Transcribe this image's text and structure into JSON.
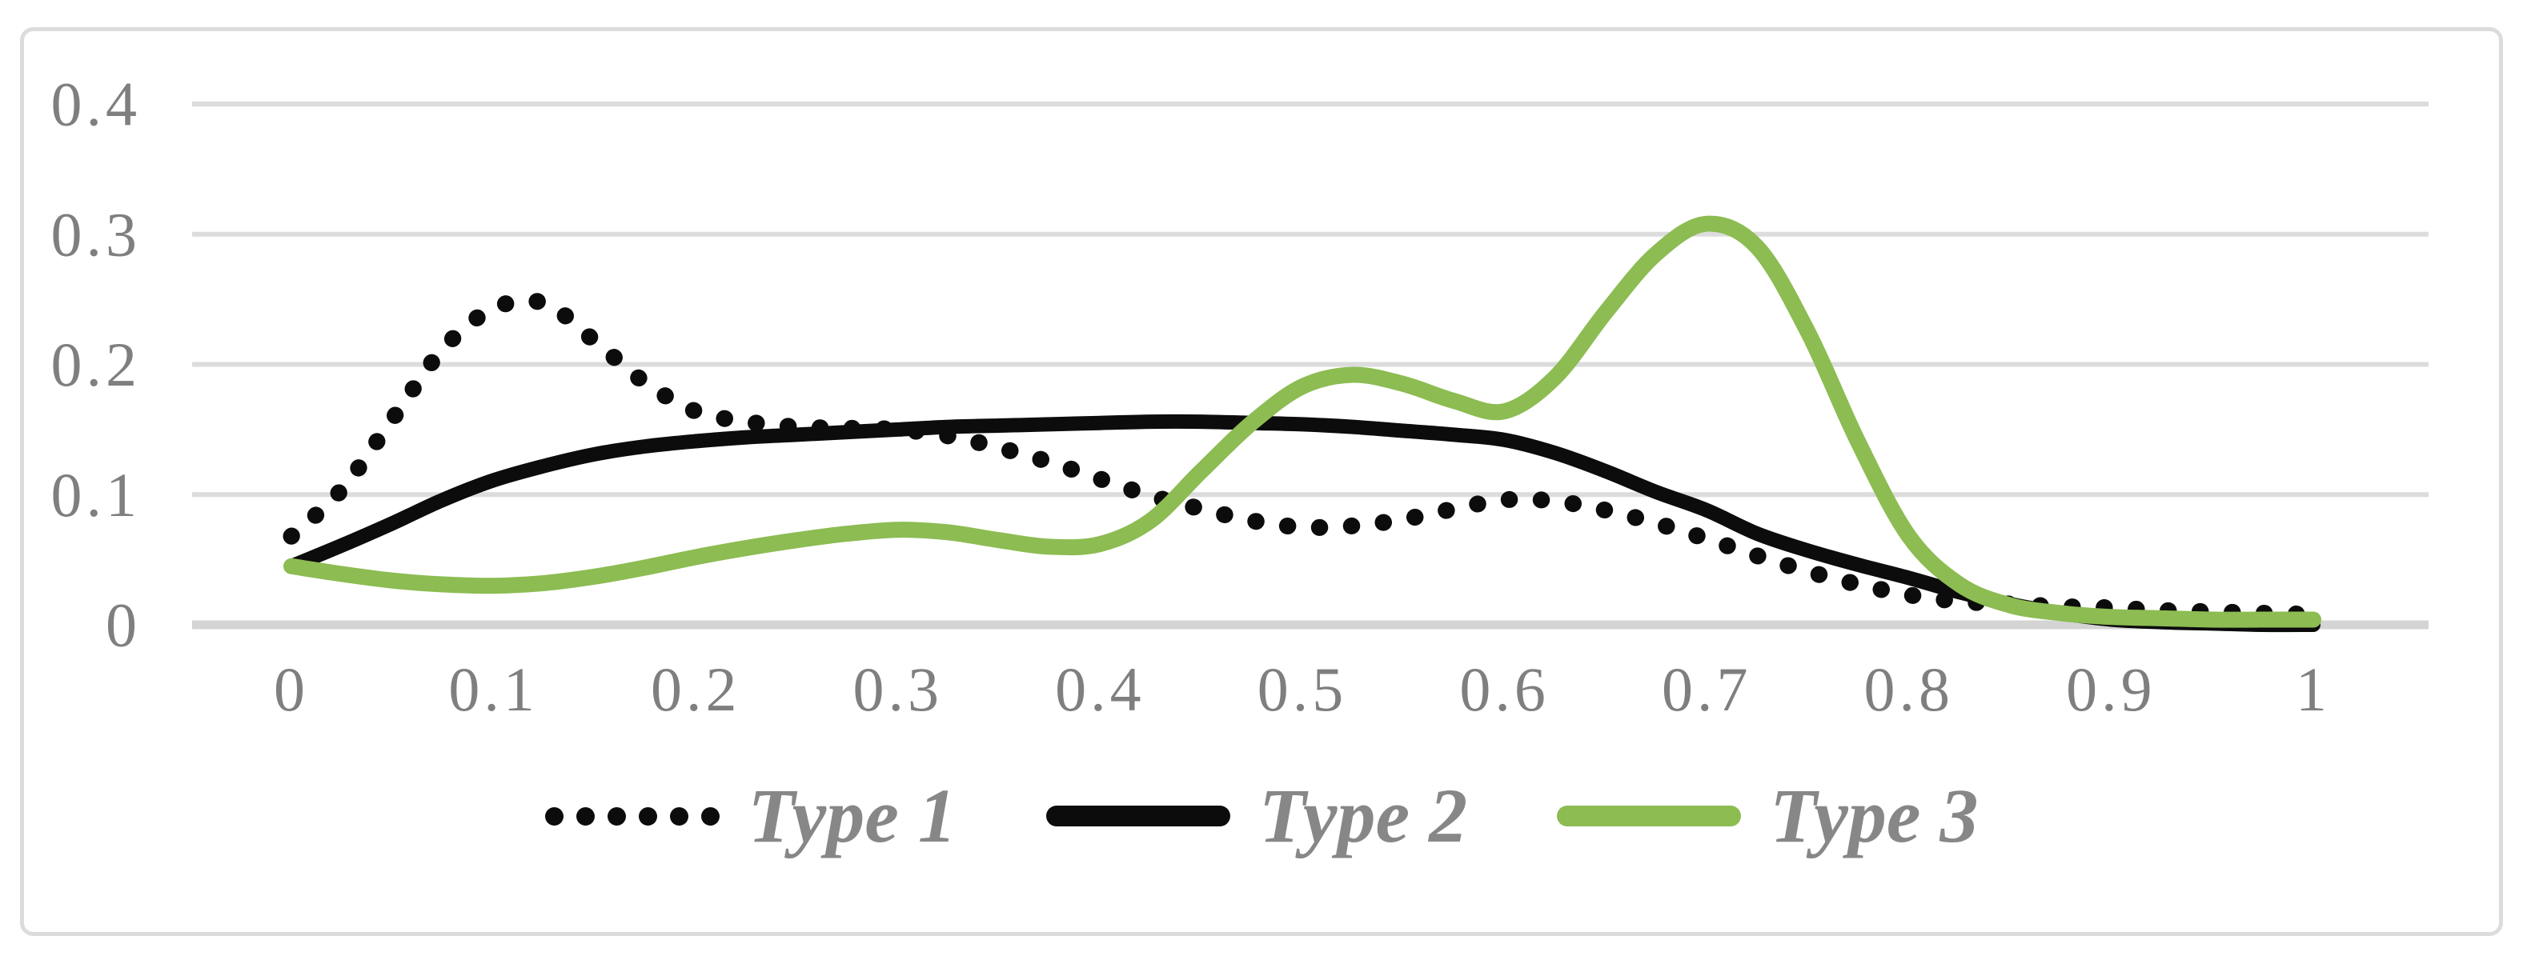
{
  "chart_data": {
    "type": "line",
    "title": "",
    "xlabel": "",
    "ylabel": "",
    "x_ticks": [
      "0",
      "0.1",
      "0.2",
      "0.3",
      "0.4",
      "0.5",
      "0.6",
      "0.7",
      "0.8",
      "0.9",
      "1"
    ],
    "y_ticks": [
      "0",
      "0.1",
      "0.2",
      "0.3",
      "0.4"
    ],
    "xlim": [
      -0.05,
      1.06
    ],
    "ylim": [
      0,
      0.4
    ],
    "grid": "horizontal",
    "legend_position": "bottom-center",
    "colors": {
      "background": "#ffffff",
      "frame": "#dcdcdc",
      "gridline": "#dcdcdc",
      "zero_axis_line": "#d4d4d4",
      "tick_label": "#7f7f7f",
      "legend_label": "#878787"
    },
    "series": [
      {
        "name": "Type 1",
        "line_style": "dotted",
        "color": "#0c0c0c",
        "x": [
          0,
          0.025,
          0.05,
          0.075,
          0.1,
          0.125,
          0.15,
          0.175,
          0.2,
          0.225,
          0.25,
          0.275,
          0.3,
          0.325,
          0.35,
          0.375,
          0.4,
          0.425,
          0.45,
          0.475,
          0.5,
          0.525,
          0.55,
          0.575,
          0.6,
          0.625,
          0.65,
          0.675,
          0.7,
          0.725,
          0.75,
          0.775,
          0.8,
          0.825,
          0.85,
          0.875,
          0.9,
          0.925,
          0.95,
          0.975,
          1.0
        ],
        "y": [
          0.068,
          0.104,
          0.158,
          0.212,
          0.243,
          0.247,
          0.218,
          0.186,
          0.164,
          0.156,
          0.152,
          0.151,
          0.15,
          0.145,
          0.136,
          0.125,
          0.112,
          0.099,
          0.089,
          0.08,
          0.075,
          0.076,
          0.081,
          0.089,
          0.096,
          0.095,
          0.088,
          0.078,
          0.066,
          0.053,
          0.041,
          0.031,
          0.023,
          0.018,
          0.016,
          0.014,
          0.013,
          0.011,
          0.01,
          0.009,
          0.008
        ]
      },
      {
        "name": "Type 2",
        "line_style": "solid",
        "color": "#0c0c0c",
        "x": [
          0,
          0.025,
          0.05,
          0.075,
          0.1,
          0.125,
          0.15,
          0.175,
          0.2,
          0.225,
          0.25,
          0.275,
          0.3,
          0.325,
          0.35,
          0.375,
          0.4,
          0.425,
          0.45,
          0.475,
          0.5,
          0.525,
          0.55,
          0.575,
          0.6,
          0.625,
          0.65,
          0.675,
          0.7,
          0.725,
          0.75,
          0.775,
          0.8,
          0.825,
          0.85,
          0.875,
          0.9,
          0.925,
          0.95,
          0.975,
          1.0
        ],
        "y": [
          0.045,
          0.061,
          0.078,
          0.096,
          0.111,
          0.122,
          0.131,
          0.137,
          0.141,
          0.144,
          0.146,
          0.148,
          0.15,
          0.152,
          0.153,
          0.154,
          0.155,
          0.156,
          0.156,
          0.155,
          0.154,
          0.152,
          0.149,
          0.146,
          0.142,
          0.132,
          0.118,
          0.102,
          0.088,
          0.07,
          0.057,
          0.046,
          0.036,
          0.025,
          0.016,
          0.009,
          0.004,
          0.002,
          0.001,
          0.0,
          0.0
        ]
      },
      {
        "name": "Type 3",
        "line_style": "solid",
        "color": "#8cbc52",
        "x": [
          0,
          0.025,
          0.05,
          0.075,
          0.1,
          0.125,
          0.15,
          0.175,
          0.2,
          0.225,
          0.25,
          0.275,
          0.3,
          0.325,
          0.35,
          0.375,
          0.4,
          0.425,
          0.45,
          0.475,
          0.5,
          0.525,
          0.55,
          0.575,
          0.6,
          0.625,
          0.65,
          0.675,
          0.7,
          0.725,
          0.75,
          0.775,
          0.8,
          0.825,
          0.85,
          0.875,
          0.9,
          0.925,
          0.95,
          0.975,
          1.0
        ],
        "y": [
          0.045,
          0.039,
          0.034,
          0.031,
          0.03,
          0.032,
          0.037,
          0.044,
          0.052,
          0.059,
          0.065,
          0.07,
          0.073,
          0.071,
          0.065,
          0.06,
          0.062,
          0.08,
          0.118,
          0.155,
          0.183,
          0.192,
          0.185,
          0.172,
          0.164,
          0.19,
          0.24,
          0.285,
          0.308,
          0.29,
          0.225,
          0.14,
          0.068,
          0.031,
          0.015,
          0.009,
          0.006,
          0.005,
          0.004,
          0.004,
          0.004
        ]
      }
    ]
  }
}
